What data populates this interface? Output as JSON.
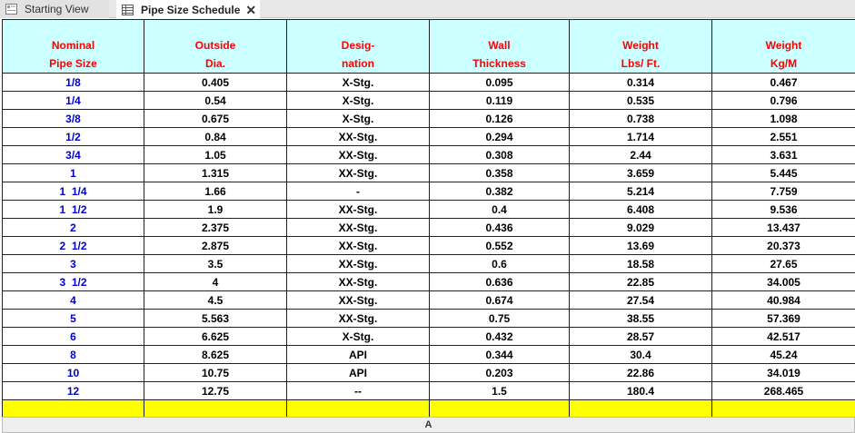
{
  "tabs": [
    {
      "label": "Starting View",
      "icon": "view-icon"
    },
    {
      "label": "Pipe Size Schedule",
      "icon": "schedule-table-icon",
      "close": "✕"
    }
  ],
  "table": {
    "headers": [
      [
        "Nominal",
        "Pipe Size"
      ],
      [
        "Outside",
        "Dia."
      ],
      [
        "Desig-",
        "nation"
      ],
      [
        "Wall",
        "Thickness"
      ],
      [
        "Weight",
        "Lbs/ Ft."
      ],
      [
        "Weight",
        "Kg/M"
      ]
    ],
    "rows": [
      [
        "1/8",
        "0.405",
        "X-Stg.",
        "0.095",
        "0.314",
        "0.467"
      ],
      [
        "1/4",
        "0.54",
        "X-Stg.",
        "0.119",
        "0.535",
        "0.796"
      ],
      [
        "3/8",
        "0.675",
        "X-Stg.",
        "0.126",
        "0.738",
        "1.098"
      ],
      [
        "1/2",
        "0.84",
        "XX-Stg.",
        "0.294",
        "1.714",
        "2.551"
      ],
      [
        "3/4",
        "1.05",
        "XX-Stg.",
        "0.308",
        "2.44",
        "3.631"
      ],
      [
        "1",
        "1.315",
        "XX-Stg.",
        "0.358",
        "3.659",
        "5.445"
      ],
      [
        "1  1/4",
        "1.66",
        "-",
        "0.382",
        "5.214",
        "7.759"
      ],
      [
        "1  1/2",
        "1.9",
        "XX-Stg.",
        "0.4",
        "6.408",
        "9.536"
      ],
      [
        "2",
        "2.375",
        "XX-Stg.",
        "0.436",
        "9.029",
        "13.437"
      ],
      [
        "2  1/2",
        "2.875",
        "XX-Stg.",
        "0.552",
        "13.69",
        "20.373"
      ],
      [
        "3",
        "3.5",
        "XX-Stg.",
        "0.6",
        "18.58",
        "27.65"
      ],
      [
        "3  1/2",
        "4",
        "XX-Stg.",
        "0.636",
        "22.85",
        "34.005"
      ],
      [
        "4",
        "4.5",
        "XX-Stg.",
        "0.674",
        "27.54",
        "40.984"
      ],
      [
        "5",
        "5.563",
        "XX-Stg.",
        "0.75",
        "38.55",
        "57.369"
      ],
      [
        "6",
        "6.625",
        "X-Stg.",
        "0.432",
        "28.57",
        "42.517"
      ],
      [
        "8",
        "8.625",
        "API",
        "0.344",
        "30.4",
        "45.24"
      ],
      [
        "10",
        "10.75",
        "API",
        "0.203",
        "22.86",
        "34.019"
      ],
      [
        "12",
        "12.75",
        "--",
        "1.5",
        "180.4",
        "268.465"
      ]
    ]
  },
  "footer": {
    "label": "A"
  },
  "colors": {
    "header_bg": "#ccffff",
    "header_text": "#ff0000",
    "nps_text": "#0000cc",
    "highlight_row": "#ffff00"
  }
}
